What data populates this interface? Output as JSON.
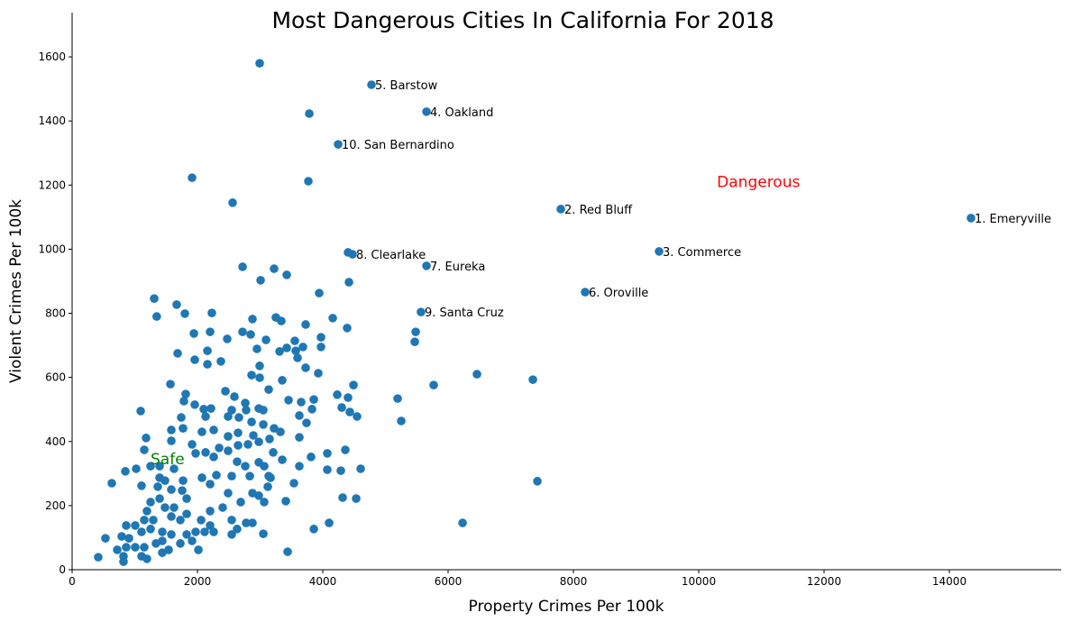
{
  "chart_data": {
    "type": "scatter",
    "title": "Most Dangerous Cities In California For 2018",
    "xlabel": "Property Crimes Per 100k",
    "ylabel": "Violent Crimes Per 100k",
    "xlim": [
      0,
      15784
    ],
    "ylim": [
      0,
      1738
    ],
    "xticks": [
      0,
      2000,
      4000,
      6000,
      8000,
      10000,
      12000,
      14000
    ],
    "yticks": [
      0,
      200,
      400,
      600,
      800,
      1000,
      1200,
      1400,
      1600
    ],
    "grid": false,
    "point_color": "#1f77b4",
    "annotations": [
      {
        "text": "1. Emeryville",
        "x": 14345,
        "y": 1097
      },
      {
        "text": "2. Red Bluff",
        "x": 7799,
        "y": 1125
      },
      {
        "text": "3. Commerce",
        "x": 9367,
        "y": 993
      },
      {
        "text": "4. Oakland",
        "x": 5655,
        "y": 1429
      },
      {
        "text": "5. Barstow",
        "x": 4777,
        "y": 1513
      },
      {
        "text": "6. Oroville",
        "x": 8187,
        "y": 866
      },
      {
        "text": "7. Eureka",
        "x": 5655,
        "y": 948
      },
      {
        "text": "8. Clearlake",
        "x": 4475,
        "y": 984
      },
      {
        "text": "9. Santa Cruz",
        "x": 5568,
        "y": 804
      },
      {
        "text": "10. San Bernardino",
        "x": 4245,
        "y": 1327
      }
    ],
    "region_labels": [
      {
        "text": "Safe",
        "x": 1252,
        "y": 346,
        "color": "#008000"
      },
      {
        "text": "Dangerous",
        "x": 10290,
        "y": 1210,
        "color": "#ff0000"
      }
    ],
    "points": [
      [
        14345,
        1097
      ],
      [
        7799,
        1125
      ],
      [
        9367,
        993
      ],
      [
        5655,
        1429
      ],
      [
        4777,
        1513
      ],
      [
        8187,
        866
      ],
      [
        5655,
        948
      ],
      [
        4475,
        984
      ],
      [
        5568,
        804
      ],
      [
        4245,
        1327
      ],
      [
        2993,
        1580
      ],
      [
        3785,
        1423
      ],
      [
        1914,
        1223
      ],
      [
        3770,
        1212
      ],
      [
        2561,
        1145
      ],
      [
        2720,
        945
      ],
      [
        3223,
        939
      ],
      [
        6461,
        610
      ],
      [
        7353,
        593
      ],
      [
        5770,
        576
      ],
      [
        5195,
        534
      ],
      [
        5252,
        464
      ],
      [
        7425,
        276
      ],
      [
        6231,
        146
      ],
      [
        4403,
        990
      ],
      [
        1310,
        846
      ],
      [
        1350,
        790
      ],
      [
        1669,
        827
      ],
      [
        1799,
        799
      ],
      [
        2230,
        801
      ],
      [
        1943,
        737
      ],
      [
        2202,
        742
      ],
      [
        1684,
        675
      ],
      [
        1957,
        655
      ],
      [
        2159,
        683
      ],
      [
        2159,
        641
      ],
      [
        2374,
        650
      ],
      [
        2475,
        720
      ],
      [
        2720,
        742
      ],
      [
        2849,
        734
      ],
      [
        2878,
        782
      ],
      [
        3008,
        903
      ],
      [
        3425,
        920
      ],
      [
        4418,
        897
      ],
      [
        3943,
        863
      ],
      [
        3252,
        787
      ],
      [
        3338,
        776
      ],
      [
        3727,
        765
      ],
      [
        4159,
        785
      ],
      [
        4389,
        754
      ],
      [
        3094,
        717
      ],
      [
        2950,
        689
      ],
      [
        3310,
        681
      ],
      [
        3425,
        692
      ],
      [
        3554,
        714
      ],
      [
        3684,
        695
      ],
      [
        3569,
        683
      ],
      [
        3598,
        661
      ],
      [
        3972,
        725
      ],
      [
        3972,
        695
      ],
      [
        2993,
        636
      ],
      [
        2864,
        607
      ],
      [
        2993,
        599
      ],
      [
        3353,
        591
      ],
      [
        3727,
        630
      ],
      [
        3928,
        613
      ],
      [
        3137,
        562
      ],
      [
        1569,
        579
      ],
      [
        1094,
        495
      ],
      [
        4490,
        576
      ],
      [
        4231,
        546
      ],
      [
        4403,
        537
      ],
      [
        4303,
        506
      ],
      [
        4432,
        492
      ],
      [
        4547,
        478
      ],
      [
        5483,
        742
      ],
      [
        5468,
        711
      ],
      [
        3454,
        529
      ],
      [
        3655,
        523
      ],
      [
        3857,
        531
      ],
      [
        3828,
        501
      ],
      [
        3626,
        481
      ],
      [
        3741,
        458
      ],
      [
        3626,
        413
      ],
      [
        4072,
        363
      ],
      [
        4360,
        374
      ],
      [
        3813,
        352
      ],
      [
        4072,
        312
      ],
      [
        4288,
        309
      ],
      [
        4605,
        315
      ],
      [
        4317,
        225
      ],
      [
        4533,
        222
      ],
      [
        4101,
        146
      ],
      [
        3857,
        127
      ],
      [
        3439,
        56
      ],
      [
        3051,
        112
      ],
      [
        3410,
        214
      ],
      [
        3540,
        270
      ],
      [
        3626,
        323
      ],
      [
        3353,
        343
      ],
      [
        3209,
        366
      ],
      [
        3137,
        292
      ],
      [
        2835,
        292
      ],
      [
        2547,
        292
      ],
      [
        2302,
        295
      ],
      [
        2072,
        287
      ],
      [
        2202,
        267
      ],
      [
        1756,
        247
      ],
      [
        1482,
        278
      ],
      [
        1396,
        287
      ],
      [
        1367,
        259
      ],
      [
        1108,
        262
      ],
      [
        633,
        270
      ],
      [
        849,
        307
      ],
      [
        1022,
        315
      ],
      [
        1151,
        374
      ],
      [
        1180,
        411
      ],
      [
        1583,
        402
      ],
      [
        1583,
        436
      ],
      [
        1741,
        475
      ],
      [
        1813,
        548
      ],
      [
        1784,
        526
      ],
      [
        1957,
        515
      ],
      [
        2101,
        501
      ],
      [
        2216,
        503
      ],
      [
        2130,
        478
      ],
      [
        2446,
        557
      ],
      [
        2590,
        540
      ],
      [
        2763,
        520
      ],
      [
        2547,
        498
      ],
      [
        2489,
        478
      ],
      [
        2662,
        475
      ],
      [
        2777,
        498
      ],
      [
        2979,
        503
      ],
      [
        3051,
        498
      ],
      [
        2864,
        461
      ],
      [
        3051,
        453
      ],
      [
        2648,
        427
      ],
      [
        2489,
        416
      ],
      [
        2259,
        436
      ],
      [
        2072,
        430
      ],
      [
        1770,
        441
      ],
      [
        3223,
        441
      ],
      [
        3324,
        430
      ],
      [
        3151,
        408
      ],
      [
        2892,
        419
      ],
      [
        2979,
        399
      ],
      [
        2806,
        391
      ],
      [
        2648,
        388
      ],
      [
        2346,
        380
      ],
      [
        2489,
        371
      ],
      [
        1914,
        391
      ],
      [
        1971,
        363
      ],
      [
        2130,
        366
      ],
      [
        2259,
        352
      ],
      [
        2633,
        337
      ],
      [
        2763,
        323
      ],
      [
        2979,
        335
      ],
      [
        3065,
        323
      ],
      [
        3166,
        287
      ],
      [
        3123,
        259
      ],
      [
        2979,
        231
      ],
      [
        3065,
        211
      ],
      [
        2878,
        239
      ],
      [
        2691,
        211
      ],
      [
        2489,
        239
      ],
      [
        2403,
        194
      ],
      [
        2547,
        155
      ],
      [
        2633,
        127
      ],
      [
        2777,
        146
      ],
      [
        2878,
        146
      ],
      [
        2547,
        110
      ],
      [
        2202,
        138
      ],
      [
        2202,
        183
      ],
      [
        2058,
        155
      ],
      [
        2115,
        118
      ],
      [
        2259,
        118
      ],
      [
        2015,
        62
      ],
      [
        1914,
        90
      ],
      [
        1971,
        118
      ],
      [
        1828,
        110
      ],
      [
        1727,
        82
      ],
      [
        1828,
        174
      ],
      [
        1727,
        155
      ],
      [
        1626,
        194
      ],
      [
        1482,
        194
      ],
      [
        1396,
        222
      ],
      [
        1252,
        211
      ],
      [
        1194,
        183
      ],
      [
        1295,
        155
      ],
      [
        1151,
        155
      ],
      [
        1007,
        138
      ],
      [
        863,
        138
      ],
      [
        791,
        104
      ],
      [
        532,
        98
      ],
      [
        907,
        98
      ],
      [
        1108,
        118
      ],
      [
        1252,
        127
      ],
      [
        1439,
        118
      ],
      [
        1583,
        110
      ],
      [
        1338,
        82
      ],
      [
        1151,
        70
      ],
      [
        1007,
        70
      ],
      [
        863,
        70
      ],
      [
        720,
        62
      ],
      [
        820,
        42
      ],
      [
        820,
        25
      ],
      [
        417,
        39
      ],
      [
        1108,
        42
      ],
      [
        1194,
        34
      ],
      [
        1439,
        53
      ],
      [
        1540,
        62
      ],
      [
        1439,
        90
      ],
      [
        1583,
        166
      ],
      [
        1828,
        222
      ],
      [
        1770,
        278
      ],
      [
        1626,
        315
      ],
      [
        1396,
        323
      ],
      [
        1252,
        323
      ],
      [
        1583,
        250
      ]
    ]
  }
}
